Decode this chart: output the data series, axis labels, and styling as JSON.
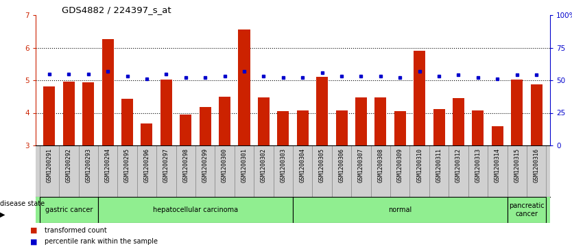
{
  "title": "GDS4882 / 224397_s_at",
  "samples": [
    "GSM1200291",
    "GSM1200292",
    "GSM1200293",
    "GSM1200294",
    "GSM1200295",
    "GSM1200296",
    "GSM1200297",
    "GSM1200298",
    "GSM1200299",
    "GSM1200300",
    "GSM1200301",
    "GSM1200302",
    "GSM1200303",
    "GSM1200304",
    "GSM1200305",
    "GSM1200306",
    "GSM1200307",
    "GSM1200308",
    "GSM1200309",
    "GSM1200310",
    "GSM1200311",
    "GSM1200312",
    "GSM1200313",
    "GSM1200314",
    "GSM1200315",
    "GSM1200316"
  ],
  "transformed_count": [
    4.82,
    4.95,
    4.93,
    6.27,
    4.44,
    3.68,
    5.03,
    3.95,
    4.17,
    4.5,
    6.55,
    4.47,
    4.05,
    4.07,
    5.1,
    4.07,
    4.47,
    4.47,
    4.05,
    5.9,
    4.12,
    4.45,
    4.07,
    3.6,
    5.02,
    4.87
  ],
  "percentile_rank": [
    55,
    55,
    55,
    57,
    53,
    51,
    55,
    52,
    52,
    53,
    57,
    53,
    52,
    52,
    56,
    53,
    53,
    53,
    52,
    57,
    53,
    54,
    52,
    51,
    54,
    54
  ],
  "ylim_left": [
    3,
    7
  ],
  "ylim_right": [
    0,
    100
  ],
  "yticks_left": [
    3,
    4,
    5,
    6,
    7
  ],
  "yticks_right": [
    0,
    25,
    50,
    75,
    100
  ],
  "bar_color": "#CC2200",
  "dot_color": "#0000CC",
  "tick_bg_color": "#D0D0D0",
  "disease_group_color": "#90EE90",
  "disease_groups": [
    {
      "label": "gastric cancer",
      "start": 0,
      "end": 2
    },
    {
      "label": "hepatocellular carcinoma",
      "start": 3,
      "end": 12
    },
    {
      "label": "normal",
      "start": 13,
      "end": 23
    },
    {
      "label": "pancreatic\ncancer",
      "start": 24,
      "end": 25
    }
  ],
  "grid_dotted_at": [
    4,
    5,
    6
  ],
  "legend_labels": [
    "transformed count",
    "percentile rank within the sample"
  ],
  "disease_state_label": "disease state"
}
